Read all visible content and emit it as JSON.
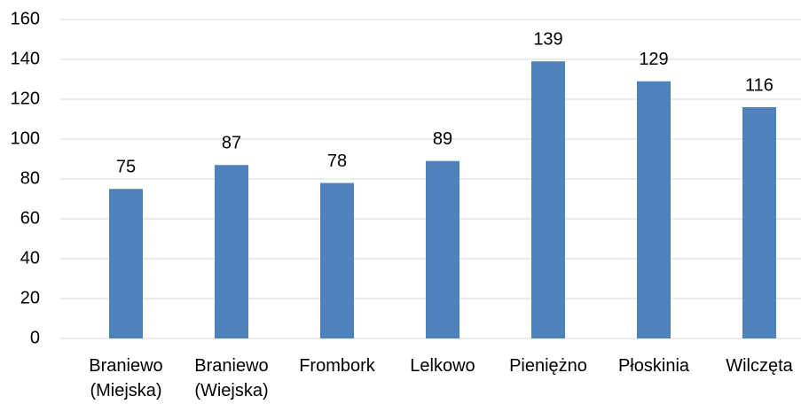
{
  "chart_data": {
    "type": "bar",
    "categories": [
      "Braniewo (Miejska)",
      "Braniewo (Wiejska)",
      "Frombork",
      "Lelkowo",
      "Pieniężno",
      "Płoskinia",
      "Wilczęta"
    ],
    "values": [
      75,
      87,
      78,
      89,
      139,
      129,
      116
    ],
    "color": "#4f81bd",
    "ylim": [
      0,
      160
    ],
    "yticks": [
      0,
      20,
      40,
      60,
      80,
      100,
      120,
      140,
      160
    ],
    "grid": true
  }
}
